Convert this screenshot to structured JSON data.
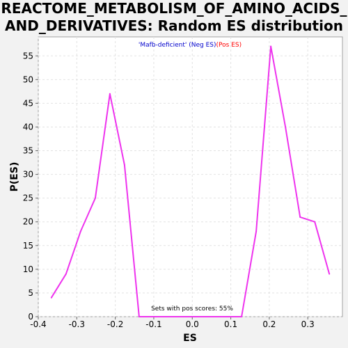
{
  "title_line1": "REACTOME_METABOLISM_OF_AMINO_ACIDS_",
  "title_line2": "AND_DERIVATIVES: Random ES distribution",
  "legend": {
    "neg_label": "'Mafb-deficient' (Neg ES)",
    "neg_color": "#0000cc",
    "pos_label": "(Pos ES)",
    "pos_color": "#ff0000"
  },
  "annotation": "Sets with pos scores: 55%",
  "chart_data": {
    "type": "line",
    "title": "REACTOME_METABOLISM_OF_AMINO_ACIDS_AND_DERIVATIVES: Random ES distribution",
    "xlabel": "ES",
    "ylabel": "P(ES)",
    "xlim": [
      -0.4,
      0.39
    ],
    "ylim": [
      0,
      59
    ],
    "xticks": [
      -0.4,
      -0.3,
      -0.2,
      -0.1,
      0.0,
      0.1,
      0.2,
      0.3
    ],
    "xtick_labels": [
      "-0.4",
      "-0.3",
      "-0.2",
      "-0.1",
      "0.0",
      "0.1",
      "0.2",
      "0.3"
    ],
    "yticks": [
      0,
      5,
      10,
      15,
      20,
      25,
      30,
      35,
      40,
      45,
      50,
      55
    ],
    "yticks_labels": [
      "0",
      "5",
      "10",
      "15",
      "20",
      "25",
      "30",
      "35",
      "40",
      "45",
      "50",
      "55"
    ],
    "grid": true,
    "line_color": "#ee33ee",
    "series": [
      {
        "x": [
          -0.366,
          -0.328,
          -0.29,
          -0.252,
          -0.214,
          -0.176,
          -0.138,
          -0.1,
          -0.062,
          -0.024,
          0.014,
          0.052,
          0.09,
          0.128,
          0.166,
          0.204,
          0.242,
          0.28,
          0.318,
          0.356
        ],
        "y": [
          4,
          9,
          18,
          25,
          47,
          32,
          0,
          0,
          0,
          0,
          0,
          0,
          0,
          0,
          18,
          57,
          40,
          21,
          20,
          9
        ]
      }
    ]
  }
}
